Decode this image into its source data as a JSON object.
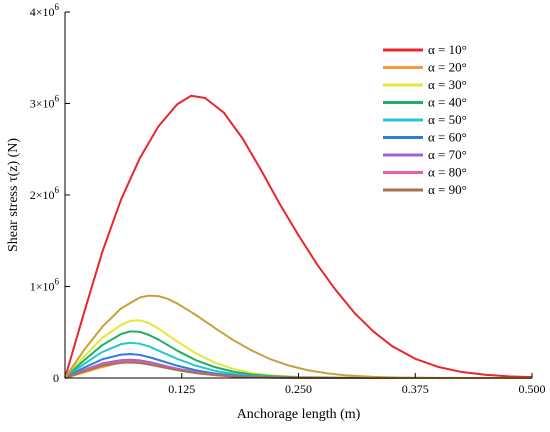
{
  "chart_data": {
    "type": "line",
    "xlabel": "Anchorage length (m)",
    "ylabel": "Shear stress τ(z) (N)",
    "xlim": [
      0,
      0.5
    ],
    "ylim": [
      0,
      4000000
    ],
    "x_ticks": [
      {
        "value": 0.125,
        "label": "0.125"
      },
      {
        "value": 0.25,
        "label": "0.250"
      },
      {
        "value": 0.375,
        "label": "0.375"
      },
      {
        "value": 0.5,
        "label": "0.500"
      }
    ],
    "y_ticks": [
      {
        "value": 0,
        "base": "0",
        "exp": ""
      },
      {
        "value": 1000000,
        "base": "1×10",
        "exp": "6"
      },
      {
        "value": 2000000,
        "base": "2×10",
        "exp": "6"
      },
      {
        "value": 3000000,
        "base": "3×10",
        "exp": "6"
      },
      {
        "value": 4000000,
        "base": "4×10",
        "exp": "6"
      }
    ],
    "grid": false,
    "legend_position": "top-right",
    "series": [
      {
        "name": "α = 10°",
        "color": "#e8262b",
        "x": [
          0,
          0.02,
          0.04,
          0.06,
          0.08,
          0.1,
          0.12,
          0.135,
          0.15,
          0.17,
          0.19,
          0.21,
          0.23,
          0.25,
          0.27,
          0.29,
          0.31,
          0.33,
          0.35,
          0.375,
          0.4,
          0.425,
          0.45,
          0.475,
          0.5
        ],
        "y": [
          0,
          700000,
          1380000,
          1950000,
          2400000,
          2750000,
          2990000,
          3085000,
          3060000,
          2900000,
          2620000,
          2270000,
          1900000,
          1560000,
          1240000,
          960000,
          710000,
          510000,
          350000,
          210000,
          120000,
          65000,
          35000,
          18000,
          10000
        ]
      },
      {
        "name": "α = 20°",
        "color": "#f39a3a",
        "x": [
          0,
          0.02,
          0.04,
          0.06,
          0.07,
          0.08,
          0.09,
          0.1,
          0.12,
          0.14,
          0.16,
          0.18,
          0.2,
          0.22,
          0.25,
          0.3,
          0.4,
          0.5
        ],
        "y": [
          0,
          60000,
          120000,
          170000,
          180000,
          175000,
          160000,
          140000,
          100000,
          65000,
          40000,
          24000,
          14000,
          8000,
          3000,
          800,
          100,
          0
        ]
      },
      {
        "name": "α = 30°",
        "color": "#e6e63a",
        "x": [
          0,
          0.02,
          0.04,
          0.06,
          0.07,
          0.08,
          0.09,
          0.1,
          0.12,
          0.14,
          0.16,
          0.18,
          0.2,
          0.22,
          0.25,
          0.3,
          0.4,
          0.5
        ],
        "y": [
          0,
          230000,
          440000,
          580000,
          625000,
          630000,
          600000,
          540000,
          400000,
          270000,
          170000,
          100000,
          55000,
          30000,
          12000,
          2500,
          200,
          0
        ]
      },
      {
        "name": "α = 40°",
        "color": "#1fae63",
        "x": [
          0,
          0.02,
          0.04,
          0.06,
          0.07,
          0.08,
          0.09,
          0.1,
          0.12,
          0.14,
          0.16,
          0.18,
          0.2,
          0.22,
          0.25,
          0.3,
          0.4,
          0.5
        ],
        "y": [
          0,
          190000,
          360000,
          480000,
          510000,
          505000,
          470000,
          420000,
          300000,
          195000,
          120000,
          70000,
          38000,
          20000,
          7000,
          1500,
          100,
          0
        ]
      },
      {
        "name": "α = 50°",
        "color": "#22c7d3",
        "x": [
          0,
          0.02,
          0.04,
          0.06,
          0.07,
          0.08,
          0.09,
          0.1,
          0.12,
          0.14,
          0.16,
          0.18,
          0.2,
          0.22,
          0.25,
          0.3,
          0.4,
          0.5
        ],
        "y": [
          0,
          150000,
          285000,
          370000,
          385000,
          375000,
          345000,
          300000,
          210000,
          135000,
          80000,
          45000,
          24000,
          12000,
          4500,
          900,
          80,
          0
        ]
      },
      {
        "name": "α = 60°",
        "color": "#2b7ed8",
        "x": [
          0,
          0.02,
          0.04,
          0.06,
          0.07,
          0.08,
          0.09,
          0.1,
          0.12,
          0.14,
          0.16,
          0.18,
          0.2,
          0.22,
          0.25,
          0.3,
          0.4,
          0.5
        ],
        "y": [
          0,
          110000,
          205000,
          255000,
          262000,
          252000,
          228000,
          198000,
          135000,
          85000,
          50000,
          28000,
          15000,
          7500,
          2800,
          500,
          50,
          0
        ]
      },
      {
        "name": "α = 70°",
        "color": "#9a62d6",
        "x": [
          0,
          0.02,
          0.04,
          0.06,
          0.07,
          0.08,
          0.09,
          0.1,
          0.12,
          0.14,
          0.16,
          0.18,
          0.2,
          0.22,
          0.25,
          0.3,
          0.4,
          0.5
        ],
        "y": [
          0,
          85000,
          160000,
          195000,
          200000,
          193000,
          175000,
          150000,
          102000,
          64000,
          38000,
          21000,
          11000,
          5500,
          2000,
          400,
          40,
          0
        ]
      },
      {
        "name": "α = 80°",
        "color": "#ec5ea8",
        "x": [
          0,
          0.02,
          0.04,
          0.06,
          0.07,
          0.08,
          0.09,
          0.1,
          0.12,
          0.14,
          0.16,
          0.18,
          0.2,
          0.22,
          0.25,
          0.3,
          0.4,
          0.5
        ],
        "y": [
          0,
          78000,
          145000,
          176000,
          180000,
          174000,
          157000,
          135000,
          92000,
          57000,
          34000,
          19000,
          10000,
          5000,
          1800,
          350,
          30,
          0
        ]
      },
      {
        "name": "α = 90°",
        "color": "#a9714e",
        "x": [
          0,
          0.02,
          0.04,
          0.06,
          0.07,
          0.08,
          0.09,
          0.1,
          0.12,
          0.14,
          0.16,
          0.18,
          0.2,
          0.22,
          0.25,
          0.3,
          0.4,
          0.5
        ],
        "y": [
          0,
          72000,
          135000,
          165000,
          170000,
          164000,
          148000,
          127000,
          86000,
          53000,
          31000,
          17000,
          9000,
          4500,
          1600,
          300,
          30,
          0
        ]
      },
      {
        "name": "",
        "color": "#c9a03e",
        "x": [
          0,
          0.02,
          0.04,
          0.06,
          0.08,
          0.09,
          0.1,
          0.11,
          0.12,
          0.14,
          0.16,
          0.18,
          0.2,
          0.22,
          0.24,
          0.26,
          0.28,
          0.3,
          0.33,
          0.36,
          0.4,
          0.45,
          0.5
        ],
        "y": [
          0,
          300000,
          560000,
          760000,
          880000,
          900000,
          895000,
          865000,
          815000,
          690000,
          550000,
          415000,
          300000,
          205000,
          135000,
          85000,
          52000,
          30000,
          12000,
          4500,
          1000,
          150,
          0
        ]
      }
    ]
  }
}
